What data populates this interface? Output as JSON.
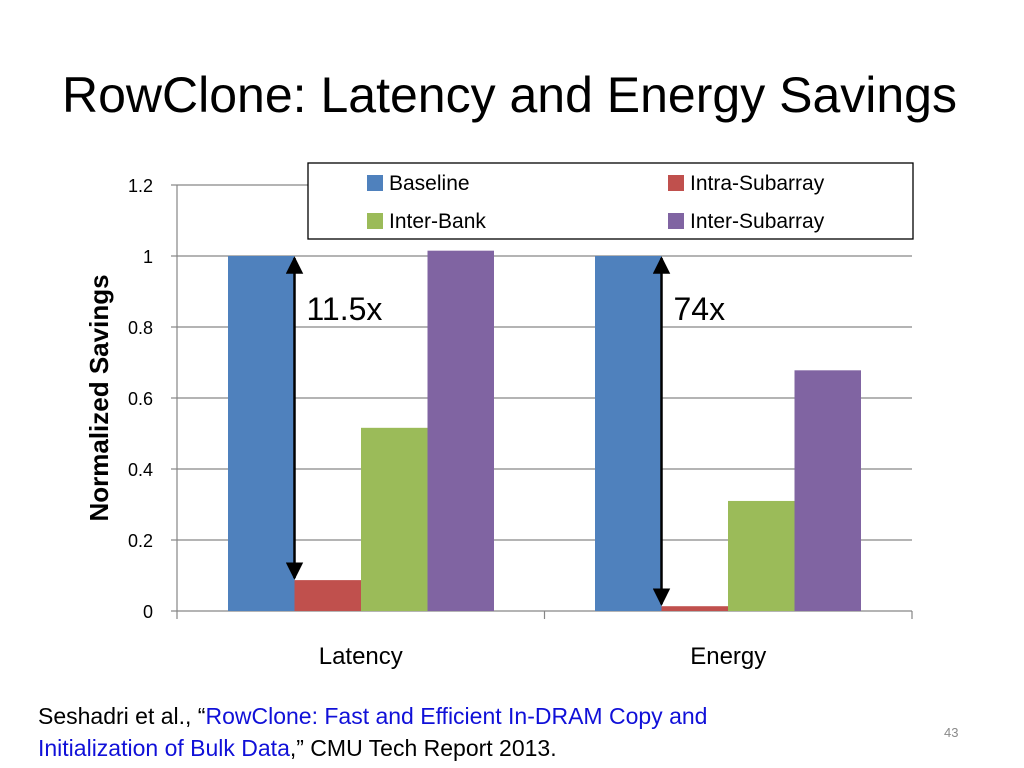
{
  "slide": {
    "title": "RowClone: Latency and Energy Savings",
    "page_number": "43"
  },
  "citation": {
    "authors": "Seshadri et al., “",
    "paper_title_line1": "RowClone: Fast and Efficient In-DRAM Copy and",
    "paper_title_line2": "Initialization of Bulk Data",
    "suffix": ",” CMU Tech Report 2013.",
    "link_color": "#1010d8"
  },
  "chart_data": {
    "type": "bar",
    "title": "",
    "xlabel": "",
    "ylabel": "Normalized Savings",
    "categories": [
      "Latency",
      "Energy"
    ],
    "ylim": [
      0,
      1.2
    ],
    "yticks": [
      "0",
      "0.2",
      "0.4",
      "0.6",
      "0.8",
      "1",
      "1.2"
    ],
    "grid": true,
    "legend_position": "top-right",
    "series": [
      {
        "name": "Baseline",
        "color": "#4f81bd",
        "values": [
          1.0,
          1.0
        ]
      },
      {
        "name": "Intra-Subarray",
        "color": "#c0504d",
        "values": [
          0.087,
          0.0135
        ]
      },
      {
        "name": "Inter-Bank",
        "color": "#9bbb59",
        "values": [
          0.516,
          0.31
        ]
      },
      {
        "name": "Inter-Subarray",
        "color": "#8064a2",
        "values": [
          1.015,
          0.678
        ]
      }
    ],
    "annotations": [
      {
        "text": "11.5x",
        "category": "Latency",
        "from": 0.087,
        "to": 1.0
      },
      {
        "text": "74x",
        "category": "Energy",
        "from": 0.0135,
        "to": 1.0
      }
    ]
  }
}
